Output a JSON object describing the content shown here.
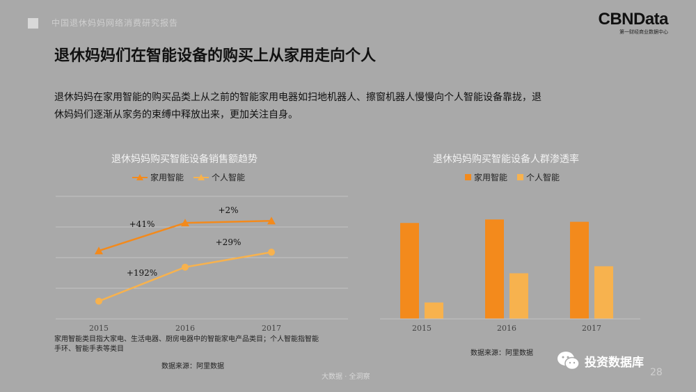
{
  "header": {
    "banner_text": "中国退休妈妈网络消费研究报告",
    "logo_main": "CBNData",
    "logo_sub": "第一财经商业数据中心"
  },
  "page": {
    "title": "退休妈妈们在智能设备的购买上从家用走向个人",
    "intro_line1": "退休妈妈在家用智能的购买品类上从之前的智能家用电器如扫地机器人、擦窗机器人慢慢向个人智能设备靠拢，退",
    "intro_line2": "休妈妈们逐渐从家务的束缚中释放出来，更加关注自身。"
  },
  "colors": {
    "home": "#f38a1c",
    "personal": "#f7b24e"
  },
  "chart_data": [
    {
      "type": "line",
      "title": "退休妈妈购买智能设备销售额趋势",
      "categories": [
        "2015",
        "2016",
        "2017"
      ],
      "series": [
        {
          "name": "家用智能",
          "values": [
            100,
            141,
            144
          ]
        },
        {
          "name": "个人智能",
          "values": [
            26,
            76,
            98
          ]
        }
      ],
      "annotations": [
        "+41%",
        "+2%",
        "+192%",
        "+29%"
      ],
      "ylim": [
        0,
        180
      ],
      "grid": true,
      "legend": "top",
      "note_line1": "家用智能类目指大家电、生活电器、厨房电器中的智能家电产品类目；个人智能指智能",
      "note_line2": "手环、智能手表等类目",
      "source": "数据来源：阿里数据"
    },
    {
      "type": "bar",
      "title": "退休妈妈购买智能设备人群渗透率",
      "categories": [
        "2015",
        "2016",
        "2017"
      ],
      "series": [
        {
          "name": "家用智能",
          "values": [
            0.82,
            0.85,
            0.83
          ]
        },
        {
          "name": "个人智能",
          "values": [
            0.14,
            0.39,
            0.45
          ]
        }
      ],
      "ylim": [
        0,
        1
      ],
      "grid": false,
      "legend": "top",
      "source": "数据来源：阿里数据"
    }
  ],
  "footer": {
    "center_text": "大数据 · 全洞察",
    "page_number": "28",
    "wechat_name": "投资数据库"
  }
}
